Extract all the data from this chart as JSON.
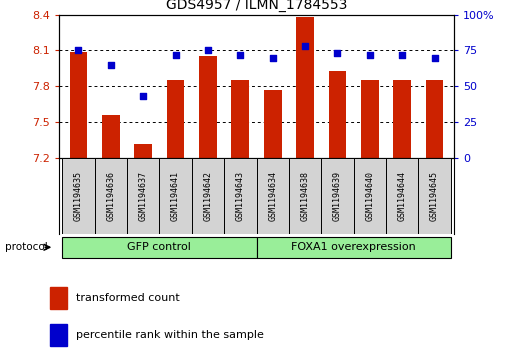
{
  "title": "GDS4957 / ILMN_1784553",
  "samples": [
    "GSM1194635",
    "GSM1194636",
    "GSM1194637",
    "GSM1194641",
    "GSM1194642",
    "GSM1194643",
    "GSM1194634",
    "GSM1194638",
    "GSM1194639",
    "GSM1194640",
    "GSM1194644",
    "GSM1194645"
  ],
  "bar_values": [
    8.09,
    7.56,
    7.32,
    7.85,
    8.05,
    7.85,
    7.77,
    8.38,
    7.93,
    7.85,
    7.85,
    7.85
  ],
  "dot_values": [
    75,
    65,
    43,
    72,
    75,
    72,
    70,
    78,
    73,
    72,
    72,
    70
  ],
  "groups": [
    {
      "label": "GFP control",
      "start": 0,
      "end": 6
    },
    {
      "label": "FOXA1 overexpression",
      "start": 6,
      "end": 12
    }
  ],
  "ylim_left": [
    7.2,
    8.4
  ],
  "ylim_right": [
    0,
    100
  ],
  "yticks_left": [
    7.2,
    7.5,
    7.8,
    8.1,
    8.4
  ],
  "yticks_right": [
    0,
    25,
    50,
    75,
    100
  ],
  "ytick_labels_right": [
    "0",
    "25",
    "50",
    "75",
    "100%"
  ],
  "bar_color": "#cc2200",
  "dot_color": "#0000cc",
  "group_color": "#99ee99",
  "label_red": "transformed count",
  "label_blue": "percentile rank within the sample",
  "protocol_label": "protocol"
}
